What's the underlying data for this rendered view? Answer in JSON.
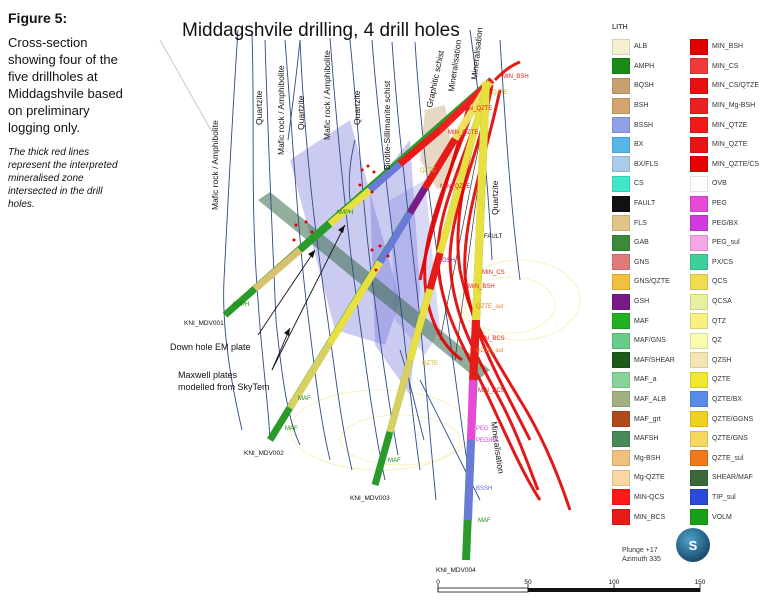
{
  "figure": {
    "label": "Figure 5:",
    "caption": "Cross-section showing four of the five drillholes at Middagshvile based on preliminary logging only.",
    "note": "The thick red lines represent the interpreted mineralised zone intersected in the drill holes."
  },
  "diagram": {
    "title": "Middagshvile drilling, 4 drill holes",
    "unit_labels": [
      "Mafic rock / Amphibolite",
      "Quartzite",
      "Mafic rock / Amphibolite",
      "Quartzite",
      "Mafic rock / Amphibolite",
      "Quartzite",
      "Biotite-Sillimanite schist",
      "Graphitic schist",
      "Mineralisation",
      "Mineralisation",
      "Quartzite",
      "Mineralisation"
    ],
    "drillholes": [
      "KNI_MDV001",
      "KNI_MDV002",
      "KNI_MDV003",
      "KNI_MDV004"
    ],
    "callouts": {
      "em_plate": "Down hole EM plate",
      "maxwell_line1": "Maxwell plates",
      "maxwell_line2": "modelled from SkyTem"
    },
    "interval_labels": [
      "AMPH",
      "AMPH",
      "QZTE",
      "FAULT",
      "MIN_CS",
      "GSH",
      "MIN_BSH",
      "QZTE_sul",
      "MIN_BCS",
      "QZTE",
      "MIN_QZTE",
      "MIN_QZTE",
      "MIN_QZTE",
      "QZTE_sul",
      "MIN_BCS",
      "MAF",
      "MAF",
      "MAF",
      "MAF",
      "BSSH",
      "PEG",
      "PEG/BX",
      "QZTE",
      "MIN_BSH"
    ],
    "view": {
      "plunge": "Plunge +17",
      "azimuth": "Azimuth 335"
    },
    "logo": "S",
    "scale": {
      "ticks": [
        "0",
        "50",
        "100",
        "150"
      ]
    }
  },
  "legend": {
    "title": "LITH",
    "items": [
      {
        "label": "ALB",
        "color": "#f5f0d0"
      },
      {
        "label": "AMPH",
        "color": "#1a8a1a"
      },
      {
        "label": "BQSH",
        "color": "#c8a070"
      },
      {
        "label": "BSH",
        "color": "#d4a470"
      },
      {
        "label": "BSSH",
        "color": "#8fa0e6"
      },
      {
        "label": "BX",
        "color": "#56b6e8"
      },
      {
        "label": "BX/FLS",
        "color": "#a8ccea"
      },
      {
        "label": "CS",
        "color": "#3fe8c8"
      },
      {
        "label": "FAULT",
        "color": "#111111"
      },
      {
        "label": "FLS",
        "color": "#e0c48a"
      },
      {
        "label": "GAB",
        "color": "#3a8a3a"
      },
      {
        "label": "GNS",
        "color": "#e07b7b"
      },
      {
        "label": "GNS/QZTE",
        "color": "#f0c040"
      },
      {
        "label": "GSH",
        "color": "#7a1a88"
      },
      {
        "label": "MAF",
        "color": "#22b022"
      },
      {
        "label": "MAF/GNS",
        "color": "#66cc88"
      },
      {
        "label": "MAF/SHEAR",
        "color": "#1a5a1a"
      },
      {
        "label": "MAF_a",
        "color": "#88d498"
      },
      {
        "label": "MAF_ALB",
        "color": "#a0b080"
      },
      {
        "label": "MAF_grt",
        "color": "#b04a1a"
      },
      {
        "label": "MAFSH",
        "color": "#4a8a5a"
      },
      {
        "label": "Mg-BSH",
        "color": "#f0c080"
      },
      {
        "label": "Mg-QZTE",
        "color": "#f8d8a0"
      },
      {
        "label": "MIN-QCS",
        "color": "#ff1a1a"
      },
      {
        "label": "MIN_BCS",
        "color": "#e81a1a"
      },
      {
        "label": "MIN_BSH",
        "color": "#e00000"
      },
      {
        "label": "MIN_CS",
        "color": "#f03a3a"
      },
      {
        "label": "MIN_CS/QTZE",
        "color": "#e81010"
      },
      {
        "label": "MIN_Mg-BSH",
        "color": "#ea2020"
      },
      {
        "label": "MIN_QTZE",
        "color": "#f01818"
      },
      {
        "label": "MIN_QZTE",
        "color": "#e81414"
      },
      {
        "label": "MIN_QZTE/CS",
        "color": "#e60000"
      },
      {
        "label": "OVB",
        "color": "#ffffff"
      },
      {
        "label": "PEG",
        "color": "#e84ad8"
      },
      {
        "label": "PEG/BX",
        "color": "#d03ae0"
      },
      {
        "label": "PEG_sul",
        "color": "#f4a6e8"
      },
      {
        "label": "PX/CS",
        "color": "#3ed09a"
      },
      {
        "label": "QCS",
        "color": "#f0dc50"
      },
      {
        "label": "QCSA",
        "color": "#e8f0a0"
      },
      {
        "label": "QTZ",
        "color": "#f8f080"
      },
      {
        "label": "QZ",
        "color": "#fafab0"
      },
      {
        "label": "QZSH",
        "color": "#f4e6b4"
      },
      {
        "label": "QZTE",
        "color": "#f0e830"
      },
      {
        "label": "QZTE/BX",
        "color": "#5a8ae8"
      },
      {
        "label": "QZTE/GGNS",
        "color": "#f0d020"
      },
      {
        "label": "QZTE/GNS",
        "color": "#f4d860"
      },
      {
        "label": "QZTE_sul",
        "color": "#f07a1a"
      },
      {
        "label": "SHEAR/MAF",
        "color": "#3a6a3a"
      },
      {
        "label": "TIP_sul",
        "color": "#2a4ad8"
      },
      {
        "label": "VOLM",
        "color": "#18a018"
      }
    ]
  }
}
